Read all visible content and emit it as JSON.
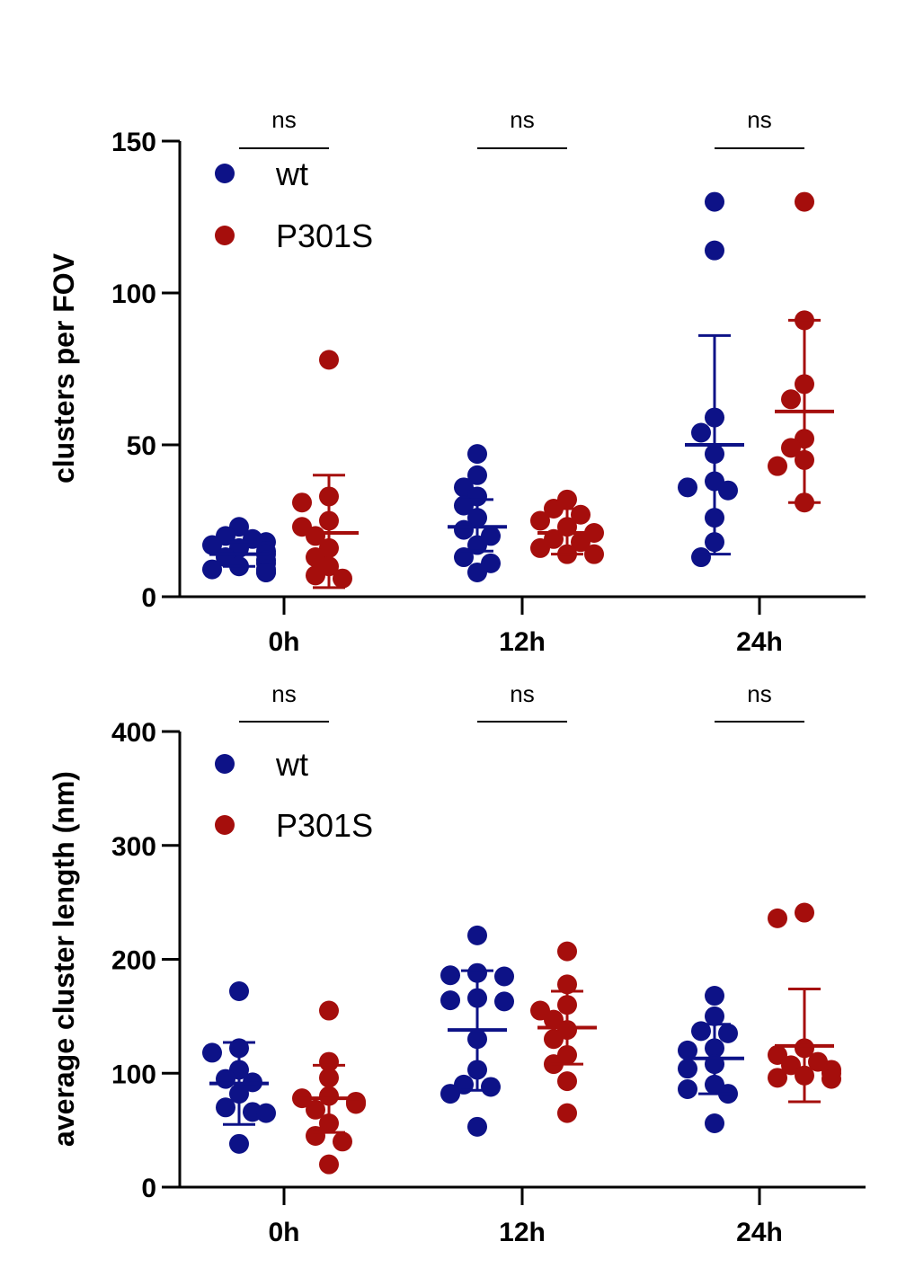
{
  "chart_data": [
    {
      "type": "scatter",
      "ylabel": "clusters per FOV",
      "ylim": [
        0,
        150
      ],
      "yticks": [
        0,
        50,
        100,
        150
      ],
      "categories": [
        "0h",
        "12h",
        "24h"
      ],
      "significance": [
        "ns",
        "ns",
        "ns"
      ],
      "colors": {
        "wt": "#0d1287",
        "P301S": "#a50e0c"
      },
      "series": [
        {
          "name": "wt",
          "points": [
            [
              23,
              20,
              19,
              18,
              17,
              16,
              15,
              14,
              13,
              12,
              11,
              10,
              9,
              9,
              8,
              8
            ],
            [
              47,
              40,
              36,
              33,
              30,
              26,
              22,
              20,
              17,
              13,
              11,
              8
            ],
            [
              130,
              114,
              59,
              54,
              47,
              38,
              36,
              35,
              26,
              18,
              13
            ]
          ],
          "mean": [
            14,
            23,
            50
          ],
          "sd_low": [
            10,
            15,
            14
          ],
          "sd_high": [
            18,
            32,
            86
          ]
        },
        {
          "name": "P301S",
          "points": [
            [
              78,
              33,
              31,
              25,
              23,
              20,
              16,
              13,
              10,
              7,
              6
            ],
            [
              32,
              29,
              27,
              25,
              23,
              21,
              19,
              18,
              16,
              14,
              14
            ],
            [
              130,
              91,
              70,
              65,
              52,
              49,
              45,
              43,
              31
            ]
          ],
          "mean": [
            21,
            21,
            61
          ],
          "sd_low": [
            3,
            14,
            31
          ],
          "sd_high": [
            40,
            29,
            91
          ]
        }
      ]
    },
    {
      "type": "scatter",
      "ylabel": "average cluster length (nm)",
      "ylim": [
        0,
        400
      ],
      "yticks": [
        0,
        100,
        200,
        300,
        400
      ],
      "categories": [
        "0h",
        "12h",
        "24h"
      ],
      "significance": [
        "ns",
        "ns",
        "ns"
      ],
      "colors": {
        "wt": "#0d1287",
        "P301S": "#a50e0c"
      },
      "series": [
        {
          "name": "wt",
          "points": [
            [
              172,
              122,
              118,
              103,
              95,
              92,
              82,
              70,
              66,
              65,
              38
            ],
            [
              221,
              188,
              186,
              185,
              166,
              164,
              163,
              130,
              103,
              90,
              88,
              82,
              53
            ],
            [
              168,
              150,
              137,
              135,
              122,
              120,
              108,
              104,
              90,
              86,
              82,
              56
            ]
          ],
          "mean": [
            91,
            138,
            113
          ],
          "sd_low": [
            55,
            85,
            82
          ],
          "sd_high": [
            127,
            190,
            143
          ]
        },
        {
          "name": "P301S",
          "points": [
            [
              155,
              110,
              96,
              80,
              78,
              75,
              73,
              68,
              56,
              45,
              40,
              20
            ],
            [
              207,
              178,
              160,
              155,
              147,
              138,
              130,
              116,
              108,
              93,
              65
            ],
            [
              241,
              236,
              122,
              116,
              110,
              107,
              103,
              100,
              98,
              96,
              95
            ]
          ],
          "mean": [
            78,
            140,
            124
          ],
          "sd_low": [
            48,
            108,
            75
          ],
          "sd_high": [
            107,
            172,
            174
          ]
        }
      ]
    }
  ]
}
